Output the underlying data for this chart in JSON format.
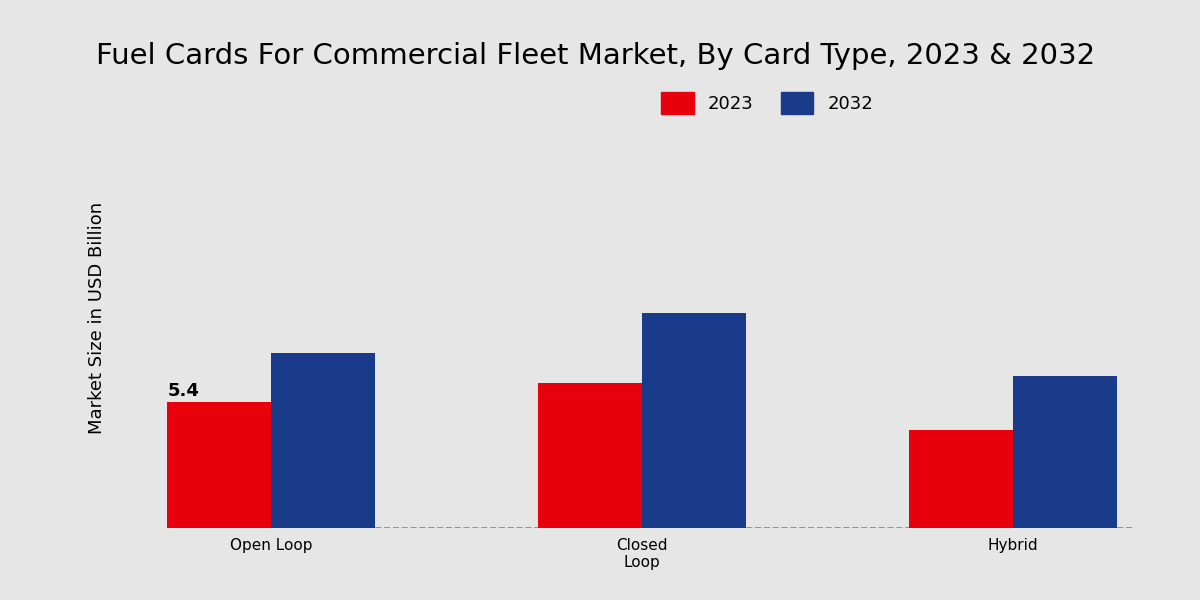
{
  "title": "Fuel Cards For Commercial Fleet Market, By Card Type, 2023 & 2032",
  "categories": [
    "Open Loop",
    "Closed\nLoop",
    "Hybrid"
  ],
  "values_2023": [
    5.4,
    6.2,
    4.2
  ],
  "values_2032": [
    7.5,
    9.2,
    6.5
  ],
  "color_2023": "#e8000d",
  "color_2032": "#1a3a8a",
  "ylabel": "Market Size in USD Billion",
  "legend_labels": [
    "2023",
    "2032"
  ],
  "bar_label_2023": "5.4",
  "background_color": "#e6e6e6",
  "ylim": [
    0,
    18
  ],
  "title_fontsize": 21,
  "label_fontsize": 13,
  "tick_fontsize": 11,
  "legend_fontsize": 13,
  "bar_width": 0.28,
  "bottom_bar_color": "#bb0000"
}
